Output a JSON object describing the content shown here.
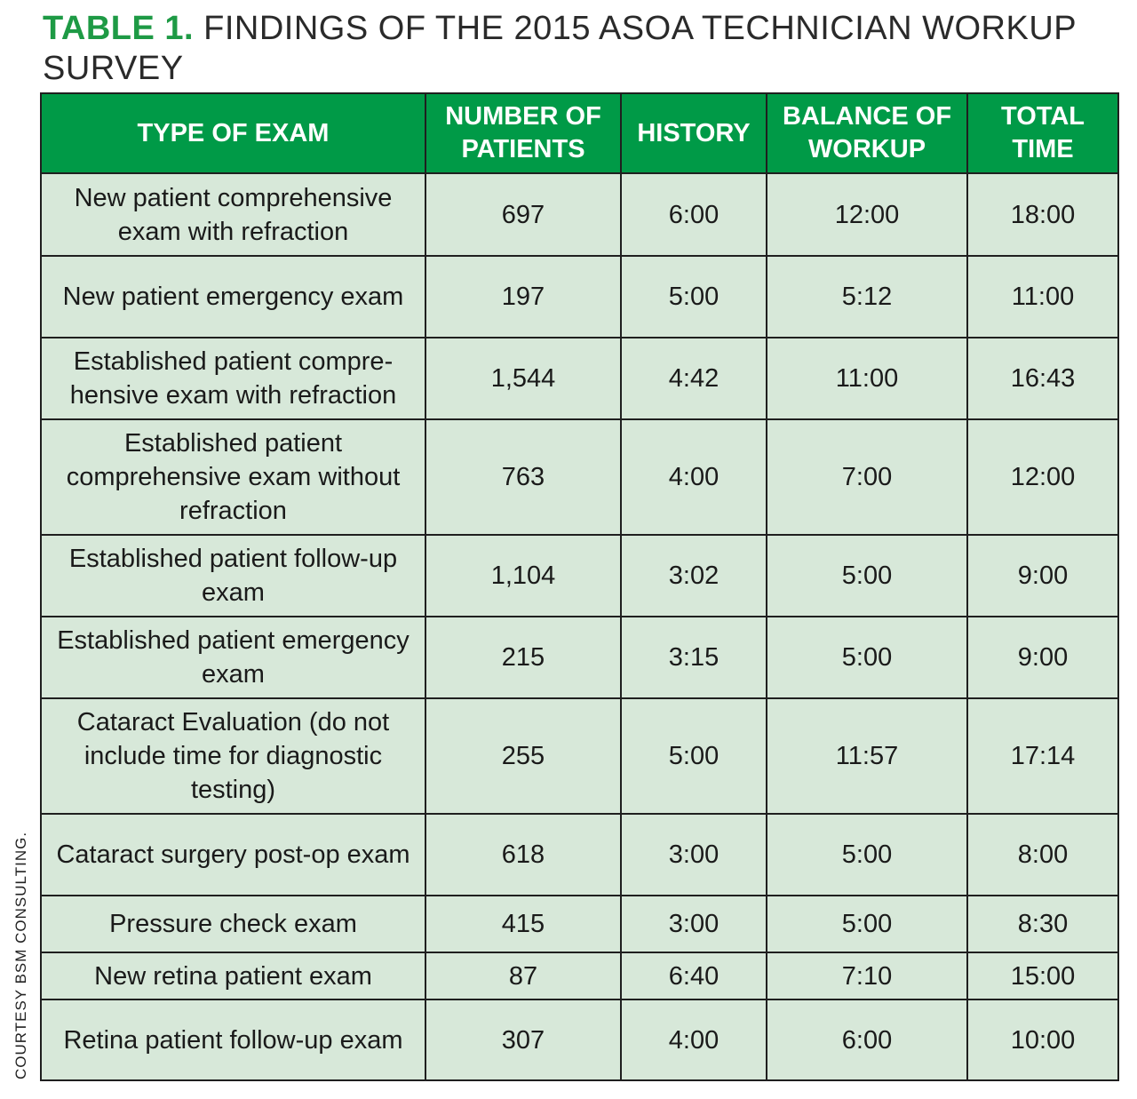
{
  "title": {
    "label": "TABLE 1.",
    "text": "FINDINGS OF THE 2015 ASOA TECHNICIAN WORKUP SURVEY"
  },
  "credit": "COURTESY BSM CONSULTING.",
  "table": {
    "headers": [
      "TYPE OF EXAM",
      "NUMBER OF PATIENTS",
      "HISTORY",
      "BALANCE OF WORKUP",
      "TOTAL TIME"
    ],
    "rows": [
      {
        "exam": "New patient comprehensive exam with refraction",
        "patients": "697",
        "history": "6:00",
        "balance": "12:00",
        "total": "18:00"
      },
      {
        "exam": "New patient emergency exam",
        "patients": "197",
        "history": "5:00",
        "balance": "5:12",
        "total": "11:00"
      },
      {
        "exam": "Established patient compre-hensive exam with refraction",
        "patients": "1,544",
        "history": "4:42",
        "balance": "11:00",
        "total": "16:43"
      },
      {
        "exam": "Established patient comprehensive exam without refraction",
        "patients": "763",
        "history": "4:00",
        "balance": "7:00",
        "total": "12:00"
      },
      {
        "exam": "Established patient follow-up exam",
        "patients": "1,104",
        "history": "3:02",
        "balance": "5:00",
        "total": "9:00"
      },
      {
        "exam": "Established patient emergency exam",
        "patients": "215",
        "history": "3:15",
        "balance": "5:00",
        "total": "9:00"
      },
      {
        "exam": "Cataract Evaluation (do not include time for diagnostic testing)",
        "patients": "255",
        "history": "5:00",
        "balance": "11:57",
        "total": "17:14"
      },
      {
        "exam": "Cataract surgery post-op exam",
        "patients": "618",
        "history": "3:00",
        "balance": "5:00",
        "total": "8:00"
      },
      {
        "exam": "Pressure check exam",
        "patients": "415",
        "history": "3:00",
        "balance": "5:00",
        "total": "8:30"
      },
      {
        "exam": "New retina patient exam",
        "patients": "87",
        "history": "6:40",
        "balance": "7:10",
        "total": "15:00"
      },
      {
        "exam": "Retina patient follow-up exam",
        "patients": "307",
        "history": "4:00",
        "balance": "6:00",
        "total": "10:00"
      }
    ]
  },
  "colors": {
    "header_bg": "#009a47",
    "cell_bg": "#d7e8d9",
    "title_accent": "#1e9a45"
  }
}
